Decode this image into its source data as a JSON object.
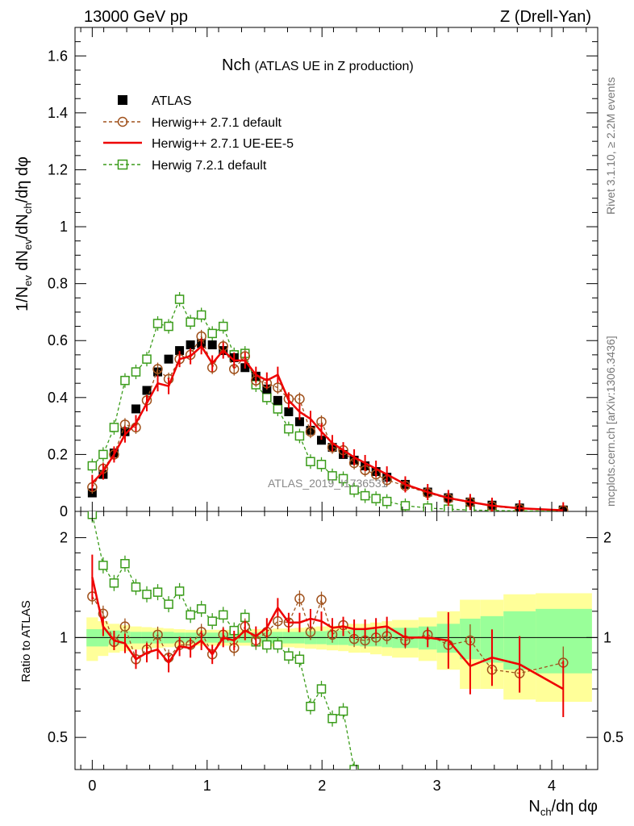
{
  "header": {
    "left": "13000 GeV pp",
    "right": "Z (Drell-Yan)"
  },
  "side_labels": {
    "rivet": "Rivet 3.1.10, ≥ 2.2M events",
    "mcplots": "mcplots.cern.ch [arXiv:1306.3436]"
  },
  "watermark": "ATLAS_2019_I1736531",
  "chart_data": [
    {
      "type": "scatter",
      "panel": "main",
      "title": "Nch",
      "subtitle": "(ATLAS UE in Z production)",
      "xlabel": "N_ch/dη dφ",
      "ylabel": "1/N_ev dN_ev/dN_ch/dη dφ",
      "xlim": [
        -0.15,
        4.4
      ],
      "ylim": [
        0,
        1.7
      ],
      "xticks": [
        0,
        1,
        2,
        3,
        4
      ],
      "yticks": [
        0.2,
        0.4,
        0.6,
        0.8,
        1.0,
        1.2,
        1.4,
        1.6
      ],
      "ytick_labels": [
        "0.2",
        "0.4",
        "0.6",
        "0.8",
        "1",
        "1.2",
        "1.4",
        "1.6"
      ],
      "legend_position": "top-left",
      "series": [
        {
          "name": "ATLAS",
          "style": "filled-square",
          "color": "#000000",
          "x": [
            0.0,
            0.095,
            0.19,
            0.285,
            0.38,
            0.475,
            0.57,
            0.665,
            0.76,
            0.855,
            0.95,
            1.045,
            1.14,
            1.235,
            1.33,
            1.425,
            1.52,
            1.615,
            1.71,
            1.805,
            1.9,
            1.995,
            2.09,
            2.185,
            2.28,
            2.375,
            2.47,
            2.565,
            2.725,
            2.92,
            3.1,
            3.29,
            3.48,
            3.72,
            4.1
          ],
          "y": [
            0.065,
            0.13,
            0.205,
            0.28,
            0.36,
            0.425,
            0.49,
            0.535,
            0.565,
            0.585,
            0.59,
            0.585,
            0.565,
            0.54,
            0.505,
            0.475,
            0.43,
            0.39,
            0.35,
            0.315,
            0.285,
            0.25,
            0.225,
            0.2,
            0.18,
            0.16,
            0.14,
            0.12,
            0.095,
            0.068,
            0.048,
            0.033,
            0.022,
            0.012,
            0.005
          ]
        },
        {
          "name": "Herwig++ 2.7.1 default",
          "style": "dashed-open-circle",
          "color": "#a0521d",
          "x": [
            0.0,
            0.095,
            0.19,
            0.285,
            0.38,
            0.475,
            0.57,
            0.665,
            0.76,
            0.855,
            0.95,
            1.045,
            1.14,
            1.235,
            1.33,
            1.425,
            1.52,
            1.615,
            1.71,
            1.805,
            1.9,
            1.995,
            2.09,
            2.185,
            2.28,
            2.375,
            2.47,
            2.565,
            2.725,
            2.92,
            3.1,
            3.29,
            3.48,
            3.72,
            4.1
          ],
          "y": [
            0.085,
            0.15,
            0.2,
            0.305,
            0.295,
            0.39,
            0.5,
            0.465,
            0.535,
            0.55,
            0.615,
            0.505,
            0.58,
            0.5,
            0.545,
            0.46,
            0.45,
            0.435,
            0.395,
            0.395,
            0.28,
            0.315,
            0.225,
            0.215,
            0.17,
            0.145,
            0.13,
            0.11,
            0.09,
            0.065,
            0.045,
            0.032,
            0.018,
            0.009,
            0.004
          ]
        },
        {
          "name": "Herwig++ 2.7.1 UE-EE-5",
          "style": "solid-line",
          "color": "#ee0000",
          "x": [
            0.0,
            0.095,
            0.19,
            0.285,
            0.38,
            0.475,
            0.57,
            0.665,
            0.76,
            0.855,
            0.95,
            1.045,
            1.14,
            1.235,
            1.33,
            1.425,
            1.52,
            1.615,
            1.71,
            1.805,
            1.9,
            1.995,
            2.09,
            2.185,
            2.28,
            2.375,
            2.47,
            2.565,
            2.725,
            2.92,
            3.1,
            3.29,
            3.48,
            3.72,
            4.1
          ],
          "y": [
            0.1,
            0.14,
            0.2,
            0.27,
            0.31,
            0.38,
            0.45,
            0.44,
            0.535,
            0.545,
            0.58,
            0.52,
            0.565,
            0.53,
            0.53,
            0.48,
            0.46,
            0.48,
            0.39,
            0.35,
            0.325,
            0.28,
            0.24,
            0.215,
            0.19,
            0.17,
            0.15,
            0.13,
            0.095,
            0.068,
            0.047,
            0.033,
            0.02,
            0.011,
            0.004
          ]
        },
        {
          "name": "Herwig 7.2.1 default",
          "style": "dashed-open-square",
          "color": "#3a9c1a",
          "x": [
            0.0,
            0.095,
            0.19,
            0.285,
            0.38,
            0.475,
            0.57,
            0.665,
            0.76,
            0.855,
            0.95,
            1.045,
            1.14,
            1.235,
            1.33,
            1.425,
            1.52,
            1.615,
            1.71,
            1.805,
            1.9,
            1.995,
            2.09,
            2.185,
            2.28,
            2.375,
            2.47,
            2.565,
            2.725,
            2.92,
            3.1,
            3.29,
            3.48,
            3.72,
            4.1
          ],
          "y": [
            0.16,
            0.2,
            0.295,
            0.46,
            0.49,
            0.535,
            0.66,
            0.65,
            0.745,
            0.665,
            0.69,
            0.625,
            0.65,
            0.55,
            0.555,
            0.445,
            0.4,
            0.36,
            0.29,
            0.265,
            0.175,
            0.165,
            0.125,
            0.115,
            0.075,
            0.055,
            0.045,
            0.035,
            0.02,
            0.012,
            0.008,
            0.005,
            0.003,
            0.002,
            0.001
          ]
        }
      ]
    },
    {
      "type": "line",
      "panel": "ratio",
      "ylabel": "Ratio to ATLAS",
      "xlim": [
        -0.15,
        4.4
      ],
      "ylim": [
        0.4,
        2.4
      ],
      "scale": "log",
      "yticks": [
        0.5,
        1,
        2
      ],
      "ytick_labels": [
        "0.5",
        "1",
        "2"
      ],
      "reference_line": 1,
      "band_edges": [
        -0.05,
        0.05,
        0.14,
        0.24,
        0.33,
        0.43,
        0.52,
        0.62,
        0.71,
        0.81,
        0.9,
        1.0,
        1.09,
        1.19,
        1.28,
        1.38,
        1.47,
        1.57,
        1.66,
        1.76,
        1.85,
        1.95,
        2.04,
        2.14,
        2.23,
        2.33,
        2.42,
        2.52,
        2.61,
        2.84,
        3.0,
        3.2,
        3.38,
        3.58,
        3.86,
        4.35
      ],
      "band_inner_halfwidth": [
        0.06,
        0.06,
        0.05,
        0.045,
        0.04,
        0.04,
        0.04,
        0.04,
        0.035,
        0.035,
        0.035,
        0.035,
        0.035,
        0.035,
        0.035,
        0.035,
        0.04,
        0.04,
        0.04,
        0.04,
        0.045,
        0.045,
        0.05,
        0.05,
        0.055,
        0.06,
        0.06,
        0.065,
        0.07,
        0.08,
        0.1,
        0.14,
        0.16,
        0.2,
        0.22
      ],
      "band_outer_halfwidth": [
        0.15,
        0.12,
        0.1,
        0.09,
        0.08,
        0.075,
        0.07,
        0.065,
        0.06,
        0.055,
        0.055,
        0.055,
        0.055,
        0.055,
        0.055,
        0.06,
        0.06,
        0.065,
        0.065,
        0.07,
        0.075,
        0.08,
        0.085,
        0.09,
        0.1,
        0.1,
        0.11,
        0.12,
        0.13,
        0.15,
        0.2,
        0.3,
        0.3,
        0.35,
        0.36
      ],
      "series": [
        {
          "name": "Herwig++ 2.7.1 default",
          "color": "#a0521d",
          "x": [
            0.0,
            0.095,
            0.19,
            0.285,
            0.38,
            0.475,
            0.57,
            0.665,
            0.76,
            0.855,
            0.95,
            1.045,
            1.14,
            1.235,
            1.33,
            1.425,
            1.52,
            1.615,
            1.71,
            1.805,
            1.9,
            1.995,
            2.09,
            2.185,
            2.28,
            2.375,
            2.47,
            2.565,
            2.725,
            2.92,
            3.1,
            3.29,
            3.48,
            3.72,
            4.1
          ],
          "y": [
            1.33,
            1.18,
            0.97,
            1.08,
            0.86,
            0.92,
            1.02,
            0.87,
            0.95,
            0.95,
            1.04,
            0.89,
            1.02,
            0.93,
            1.08,
            0.98,
            1.04,
            1.12,
            1.11,
            1.31,
            1.04,
            1.3,
            1.02,
            1.09,
            0.99,
            0.98,
            1.0,
            1.01,
            0.98,
            1.02,
            0.95,
            0.98,
            0.8,
            0.78,
            0.84
          ]
        },
        {
          "name": "Herwig++ 2.7.1 UE-EE-5",
          "color": "#ee0000",
          "x": [
            0.0,
            0.095,
            0.19,
            0.285,
            0.38,
            0.475,
            0.57,
            0.665,
            0.76,
            0.855,
            0.95,
            1.045,
            1.14,
            1.235,
            1.33,
            1.425,
            1.52,
            1.615,
            1.71,
            1.805,
            1.9,
            1.995,
            2.09,
            2.185,
            2.28,
            2.375,
            2.47,
            2.565,
            2.725,
            2.92,
            3.1,
            3.29,
            3.48,
            3.72,
            4.1
          ],
          "y": [
            1.52,
            1.08,
            0.98,
            0.96,
            0.86,
            0.9,
            0.92,
            0.84,
            0.94,
            0.93,
            0.98,
            0.89,
            1.0,
            0.98,
            1.05,
            1.01,
            1.07,
            1.23,
            1.11,
            1.11,
            1.14,
            1.12,
            1.07,
            1.08,
            1.06,
            1.06,
            1.07,
            1.08,
            1.0,
            1.0,
            0.98,
            0.82,
            0.87,
            0.83,
            0.7
          ]
        },
        {
          "name": "Herwig 7.2.1 default",
          "color": "#3a9c1a",
          "x": [
            0.0,
            0.095,
            0.19,
            0.285,
            0.38,
            0.475,
            0.57,
            0.665,
            0.76,
            0.855,
            0.95,
            1.045,
            1.14,
            1.235,
            1.33,
            1.425,
            1.52,
            1.615,
            1.71,
            1.805,
            1.9,
            1.995,
            2.09,
            2.185,
            2.28,
            2.375
          ],
          "y": [
            2.35,
            1.65,
            1.46,
            1.67,
            1.42,
            1.35,
            1.37,
            1.26,
            1.38,
            1.17,
            1.22,
            1.12,
            1.17,
            1.05,
            1.15,
            0.97,
            0.95,
            0.95,
            0.88,
            0.86,
            0.62,
            0.7,
            0.57,
            0.6,
            0.4,
            0.3
          ]
        }
      ]
    }
  ]
}
